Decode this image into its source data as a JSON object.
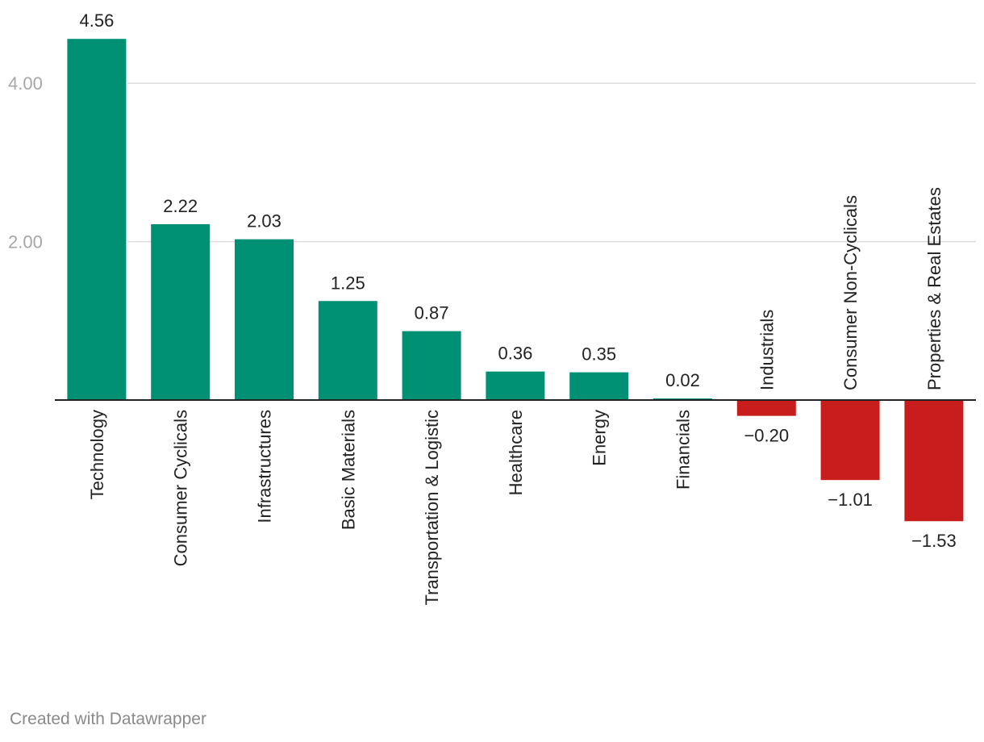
{
  "chart_data": {
    "type": "bar",
    "categories": [
      "Technology",
      "Consumer Cyclicals",
      "Infrastructures",
      "Basic Materials",
      "Transportation & Logistic",
      "Healthcare",
      "Energy",
      "Financials",
      "Industrials",
      "Consumer Non-Cyclicals",
      "Properties & Real Estates"
    ],
    "values": [
      4.56,
      2.22,
      2.03,
      1.25,
      0.87,
      0.36,
      0.35,
      0.02,
      -0.2,
      -1.01,
      -1.53
    ],
    "value_labels": [
      "4.56",
      "2.22",
      "2.03",
      "1.25",
      "0.87",
      "0.36",
      "0.35",
      "0.02",
      "−0.20",
      "−1.01",
      "−1.53"
    ],
    "y_ticks": [
      {
        "value": 2,
        "label": "2.00"
      },
      {
        "value": 4,
        "label": "4.00"
      }
    ],
    "ylim": [
      -1.53,
      4.56
    ],
    "grid": true,
    "colors": {
      "positive": "#009175",
      "negative": "#c71e1d"
    }
  },
  "footer": {
    "credit": "Created with Datawrapper"
  }
}
